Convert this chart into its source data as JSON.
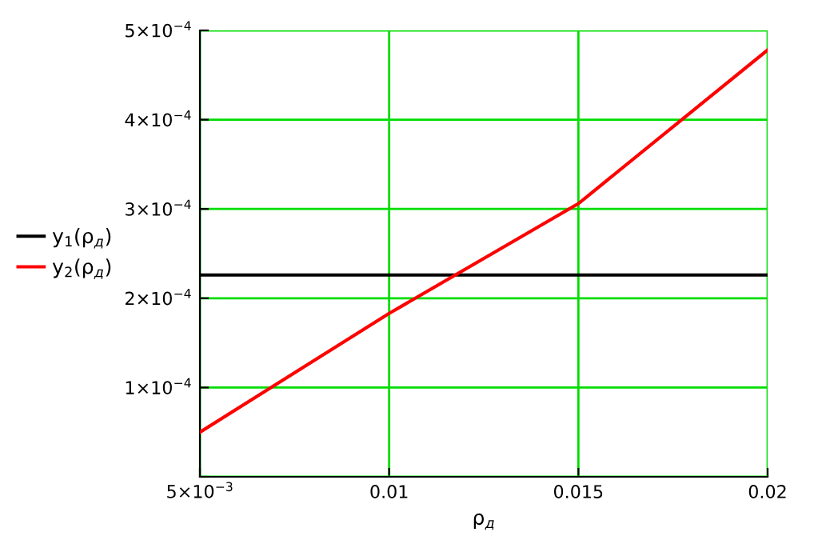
{
  "chart_data": {
    "type": "line",
    "xlabel": "ρ$_{д}$",
    "x": [
      0.005,
      0.01,
      0.015,
      0.02
    ],
    "series": [
      {
        "name": "y$_{1}$(ρ$_{д}$)",
        "color": "#000000",
        "values": [
          0.000226,
          0.000226,
          0.000226,
          0.000226
        ]
      },
      {
        "name": "y$_{2}$(ρ$_{д}$)",
        "color": "#ff0000",
        "values": [
          5e-05,
          0.000183,
          0.000306,
          0.000478
        ]
      }
    ],
    "xlim": [
      0.005,
      0.02
    ],
    "ylim": [
      0,
      0.0005
    ],
    "xticks": [
      {
        "value": 0.005,
        "label": "5×10$^{−3}$"
      },
      0.01,
      0.015,
      0.02
    ],
    "yticks": [
      {
        "value": 0,
        "label": null
      },
      {
        "value": 0.0001,
        "label": "1×10$^{−4}$"
      },
      {
        "value": 0.0002,
        "label": "2×10$^{−4}$"
      },
      {
        "value": 0.0003,
        "label": "3×10$^{−4}$"
      },
      {
        "value": 0.0004,
        "label": "4×10$^{−4}$"
      },
      {
        "value": 0.0005,
        "label": "5×10$^{−4}$"
      }
    ],
    "grid": true,
    "legend": "left"
  }
}
